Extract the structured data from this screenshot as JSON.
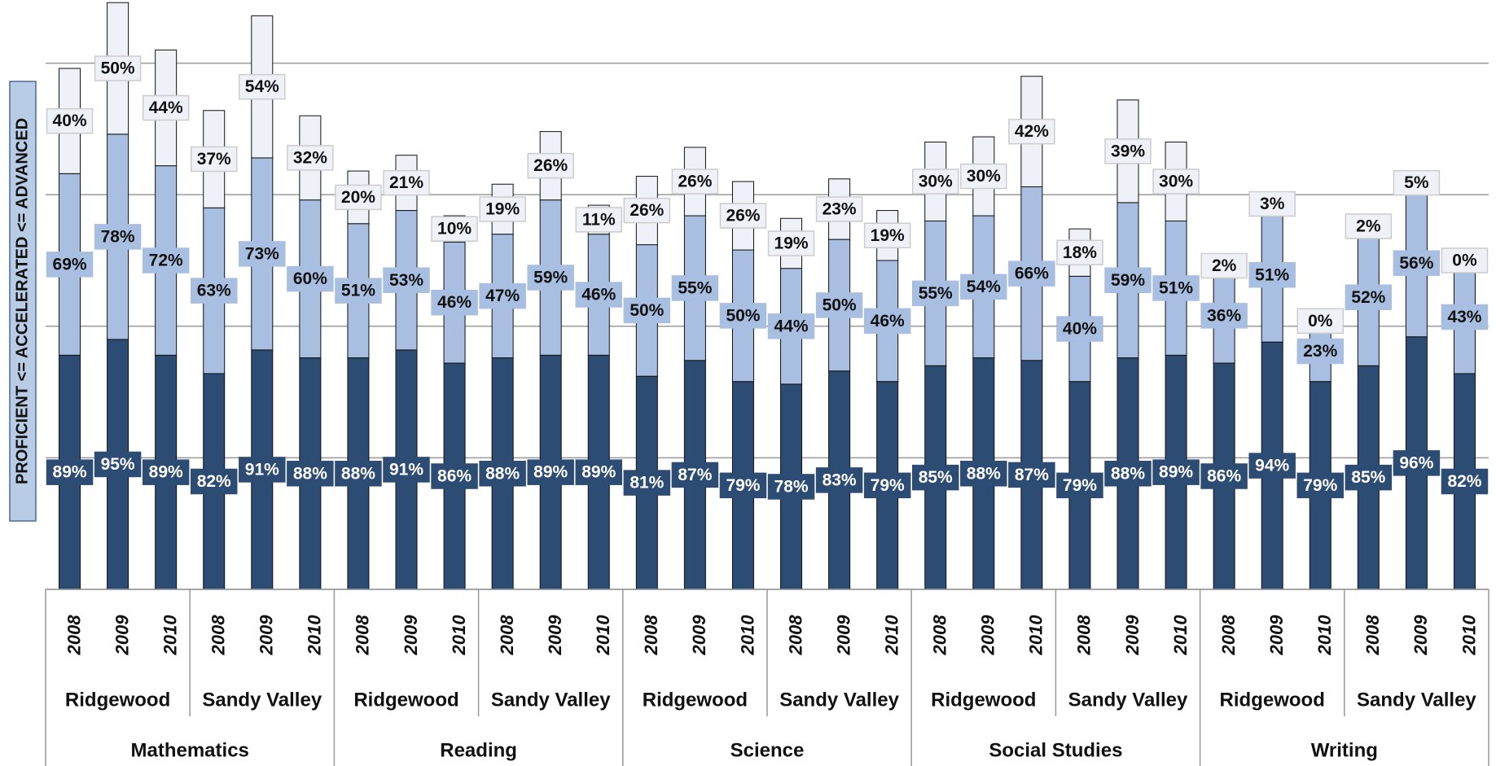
{
  "chart_data": {
    "type": "stacked-bar",
    "ylabel": "PROFICIENT <= ACCELERATED <= ADVANCED",
    "categories": [
      "2008",
      "2009",
      "2010",
      "2008",
      "2009",
      "2010",
      "2008",
      "2009",
      "2010",
      "2008",
      "2009",
      "2010",
      "2008",
      "2009",
      "2010",
      "2008",
      "2009",
      "2010",
      "2008",
      "2009",
      "2010",
      "2008",
      "2009",
      "2010",
      "2008",
      "2009",
      "2010",
      "2008",
      "2009",
      "2010"
    ],
    "schools": [
      "Ridgewood",
      "Sandy Valley",
      "Ridgewood",
      "Sandy Valley",
      "Ridgewood",
      "Sandy Valley",
      "Ridgewood",
      "Sandy Valley",
      "Ridgewood",
      "Sandy Valley"
    ],
    "subjects": [
      "Mathematics",
      "Reading",
      "Science",
      "Social Studies",
      "Writing"
    ],
    "series": [
      {
        "color": "#2d4c73",
        "label_color": "#ffffff",
        "values": [
          89,
          95,
          89,
          82,
          91,
          88,
          88,
          91,
          86,
          88,
          89,
          89,
          81,
          87,
          79,
          78,
          83,
          79,
          85,
          88,
          87,
          79,
          88,
          89,
          86,
          94,
          79,
          85,
          96,
          82
        ],
        "value_labels": [
          "89%",
          "95%",
          "89%",
          "82%",
          "91%",
          "88%",
          "88%",
          "91%",
          "86%",
          "88%",
          "89%",
          "89%",
          "81%",
          "87%",
          "79%",
          "78%",
          "83%",
          "79%",
          "85%",
          "88%",
          "87%",
          "79%",
          "88%",
          "89%",
          "86%",
          "94%",
          "79%",
          "85%",
          "96%",
          "82%"
        ]
      },
      {
        "color": "#a8bfe1",
        "label_color": "#111111",
        "values": [
          69,
          78,
          72,
          63,
          73,
          60,
          51,
          53,
          46,
          47,
          59,
          46,
          50,
          55,
          50,
          44,
          50,
          46,
          55,
          54,
          66,
          40,
          59,
          51,
          36,
          51,
          23,
          52,
          56,
          43
        ],
        "value_labels": [
          "69%",
          "78%",
          "72%",
          "63%",
          "73%",
          "60%",
          "51%",
          "53%",
          "46%",
          "47%",
          "59%",
          "46%",
          "50%",
          "55%",
          "50%",
          "44%",
          "50%",
          "46%",
          "55%",
          "54%",
          "66%",
          "40%",
          "59%",
          "51%",
          "36%",
          "51%",
          "23%",
          "52%",
          "56%",
          "43%"
        ]
      },
      {
        "color": "#eef2f8",
        "label_color": "#111111",
        "values": [
          40,
          50,
          44,
          37,
          54,
          32,
          20,
          21,
          10,
          19,
          26,
          11,
          26,
          26,
          26,
          19,
          23,
          19,
          30,
          30,
          42,
          18,
          39,
          30,
          2,
          3,
          0,
          2,
          5,
          0
        ],
        "value_labels": [
          "40%",
          "50%",
          "44%",
          "37%",
          "54%",
          "32%",
          "20%",
          "21%",
          "10%",
          "19%",
          "26%",
          "11%",
          "26%",
          "26%",
          "26%",
          "19%",
          "23%",
          "19%",
          "30%",
          "30%",
          "42%",
          "18%",
          "39%",
          "30%",
          "2%",
          "3%",
          "0%",
          "2%",
          "5%",
          "0%"
        ]
      }
    ],
    "ylim": [
      0,
      224
    ],
    "yticks": [
      0,
      50,
      100,
      150,
      200
    ],
    "grid": true
  }
}
